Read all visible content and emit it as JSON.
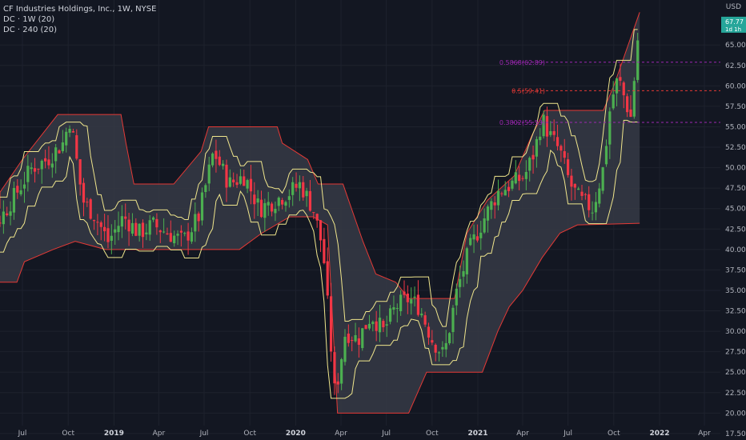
{
  "legend": {
    "title": "CF Industries Holdings, Inc., 1W, NYSE",
    "ind1": "DC · 1W (20)",
    "ind2": "DC · 240 (20)"
  },
  "axis": {
    "unit": "USD"
  },
  "price_tag": {
    "value": "67.77",
    "countdown": "1d 1h"
  },
  "level_labels": [
    {
      "text": "0.5868(62.89)",
      "value": 62.89,
      "color": "#9c27b0"
    },
    {
      "text": "0.5(59.41)",
      "value": 59.41,
      "color": "#e53935"
    },
    {
      "text": "0.3802(55.53)",
      "value": 55.53,
      "color": "#9c27b0"
    }
  ],
  "colors": {
    "up": "#4caf50",
    "down": "#f23645",
    "outer": "#e53935",
    "inner": "#f0e68c",
    "fill": "#363a45"
  },
  "chart_data": {
    "type": "candlestick",
    "title": "CF Industries Holdings, Inc., 1W, NYSE",
    "y_ticks": [
      17.5,
      20,
      22.5,
      25,
      27.5,
      30,
      32.5,
      35,
      37.5,
      40,
      42.5,
      45,
      47.5,
      50,
      52.5,
      55,
      57.5,
      60,
      62.5,
      65
    ],
    "ylim": [
      17,
      70.5
    ],
    "x_ticks": [
      {
        "label": "Jul",
        "date": "2018-07-01",
        "bold": false
      },
      {
        "label": "Oct",
        "date": "2018-10-01",
        "bold": false
      },
      {
        "label": "2019",
        "date": "2019-01-01",
        "bold": true
      },
      {
        "label": "Apr",
        "date": "2019-04-01",
        "bold": false
      },
      {
        "label": "Jul",
        "date": "2019-07-01",
        "bold": false
      },
      {
        "label": "Oct",
        "date": "2019-10-01",
        "bold": false
      },
      {
        "label": "2020",
        "date": "2020-01-01",
        "bold": true
      },
      {
        "label": "Apr",
        "date": "2020-04-01",
        "bold": false
      },
      {
        "label": "Jul",
        "date": "2020-07-01",
        "bold": false
      },
      {
        "label": "Oct",
        "date": "2020-10-01",
        "bold": false
      },
      {
        "label": "2021",
        "date": "2021-01-01",
        "bold": true
      },
      {
        "label": "Apr",
        "date": "2021-04-01",
        "bold": false
      },
      {
        "label": "Jul",
        "date": "2021-07-01",
        "bold": false
      },
      {
        "label": "Oct",
        "date": "2021-10-01",
        "bold": false
      },
      {
        "label": "2022",
        "date": "2022-01-01",
        "bold": true
      },
      {
        "label": "Apr",
        "date": "2022-04-01",
        "bold": false
      }
    ],
    "close_path": [
      [
        "2018-03-20",
        45
      ],
      [
        "2018-04-20",
        42
      ],
      [
        "2018-05-20",
        44
      ],
      [
        "2018-06-20",
        47
      ],
      [
        "2018-07-20",
        50
      ],
      [
        "2018-08-20",
        51
      ],
      [
        "2018-09-20",
        53
      ],
      [
        "2018-10-05",
        56
      ],
      [
        "2018-10-30",
        46
      ],
      [
        "2018-11-25",
        44
      ],
      [
        "2018-12-20",
        41
      ],
      [
        "2019-01-20",
        44
      ],
      [
        "2019-02-20",
        42
      ],
      [
        "2019-03-20",
        43
      ],
      [
        "2019-04-20",
        42
      ],
      [
        "2019-05-20",
        41
      ],
      [
        "2019-06-20",
        44
      ],
      [
        "2019-07-20",
        52
      ],
      [
        "2019-08-20",
        48
      ],
      [
        "2019-09-20",
        49
      ],
      [
        "2019-10-20",
        45
      ],
      [
        "2019-11-20",
        46
      ],
      [
        "2019-12-20",
        47
      ],
      [
        "2020-01-10",
        48
      ],
      [
        "2020-02-05",
        45
      ],
      [
        "2020-02-25",
        40
      ],
      [
        "2020-03-20",
        22
      ],
      [
        "2020-04-10",
        30
      ],
      [
        "2020-05-05",
        29
      ],
      [
        "2020-06-01",
        32
      ],
      [
        "2020-06-25",
        30
      ],
      [
        "2020-07-20",
        33
      ],
      [
        "2020-08-15",
        34
      ],
      [
        "2020-09-05",
        33
      ],
      [
        "2020-10-01",
        29
      ],
      [
        "2020-10-25",
        27
      ],
      [
        "2020-11-20",
        35
      ],
      [
        "2020-12-15",
        40
      ],
      [
        "2021-01-15",
        44
      ],
      [
        "2021-02-10",
        47
      ],
      [
        "2021-03-10",
        48
      ],
      [
        "2021-04-05",
        49
      ],
      [
        "2021-04-25",
        52
      ],
      [
        "2021-05-10",
        56
      ],
      [
        "2021-05-25",
        54
      ],
      [
        "2021-06-15",
        52
      ],
      [
        "2021-07-05",
        48
      ],
      [
        "2021-07-25",
        46
      ],
      [
        "2021-08-20",
        45
      ],
      [
        "2021-09-10",
        50
      ],
      [
        "2021-09-25",
        58
      ],
      [
        "2021-10-10",
        61
      ],
      [
        "2021-10-25",
        58
      ],
      [
        "2021-11-05",
        56
      ],
      [
        "2021-11-15",
        64
      ],
      [
        "2021-11-22",
        67.77
      ]
    ],
    "series": [
      {
        "name": "DC · 1W (20)",
        "upper": [
          [
            "2018-03-01",
            45
          ],
          [
            "2018-05-01",
            47
          ],
          [
            "2018-07-01",
            51
          ],
          [
            "2018-09-10",
            56.5
          ],
          [
            "2019-01-15",
            56.5
          ],
          [
            "2019-01-25",
            53
          ],
          [
            "2019-02-10",
            48
          ],
          [
            "2019-05-01",
            48
          ],
          [
            "2019-06-25",
            52
          ],
          [
            "2019-07-10",
            55
          ],
          [
            "2019-11-25",
            55
          ],
          [
            "2019-12-05",
            53
          ],
          [
            "2020-01-25",
            51
          ],
          [
            "2020-02-15",
            48
          ],
          [
            "2020-04-05",
            48
          ],
          [
            "2020-05-15",
            41
          ],
          [
            "2020-06-10",
            37
          ],
          [
            "2020-07-20",
            36
          ],
          [
            "2020-08-15",
            34
          ],
          [
            "2020-11-15",
            34
          ],
          [
            "2020-12-10",
            42
          ],
          [
            "2021-01-20",
            46
          ],
          [
            "2021-03-15",
            49
          ],
          [
            "2021-04-20",
            54
          ],
          [
            "2021-05-15",
            57
          ],
          [
            "2021-08-10",
            57
          ],
          [
            "2021-09-10",
            57
          ],
          [
            "2021-10-01",
            60
          ],
          [
            "2021-11-22",
            69
          ]
        ],
        "lower": [
          [
            "2018-03-01",
            36
          ],
          [
            "2018-06-20",
            36
          ],
          [
            "2018-07-05",
            38.5
          ],
          [
            "2018-09-01",
            40
          ],
          [
            "2018-10-15",
            41
          ],
          [
            "2018-12-15",
            40
          ],
          [
            "2019-05-15",
            40
          ],
          [
            "2019-07-10",
            40
          ],
          [
            "2019-09-10",
            40
          ],
          [
            "2019-10-25",
            42
          ],
          [
            "2019-12-20",
            44
          ],
          [
            "2020-02-05",
            44
          ],
          [
            "2020-03-05",
            43
          ],
          [
            "2020-03-25",
            20
          ],
          [
            "2020-08-15",
            20
          ],
          [
            "2020-09-20",
            25
          ],
          [
            "2020-12-05",
            25
          ],
          [
            "2021-01-10",
            25
          ],
          [
            "2021-02-10",
            30
          ],
          [
            "2021-03-05",
            33
          ],
          [
            "2021-04-01",
            35
          ],
          [
            "2021-05-10",
            39
          ],
          [
            "2021-06-15",
            42
          ],
          [
            "2021-07-20",
            43
          ],
          [
            "2021-11-22",
            43.2
          ]
        ]
      },
      {
        "name": "DC · 240 (20)"
      }
    ]
  }
}
